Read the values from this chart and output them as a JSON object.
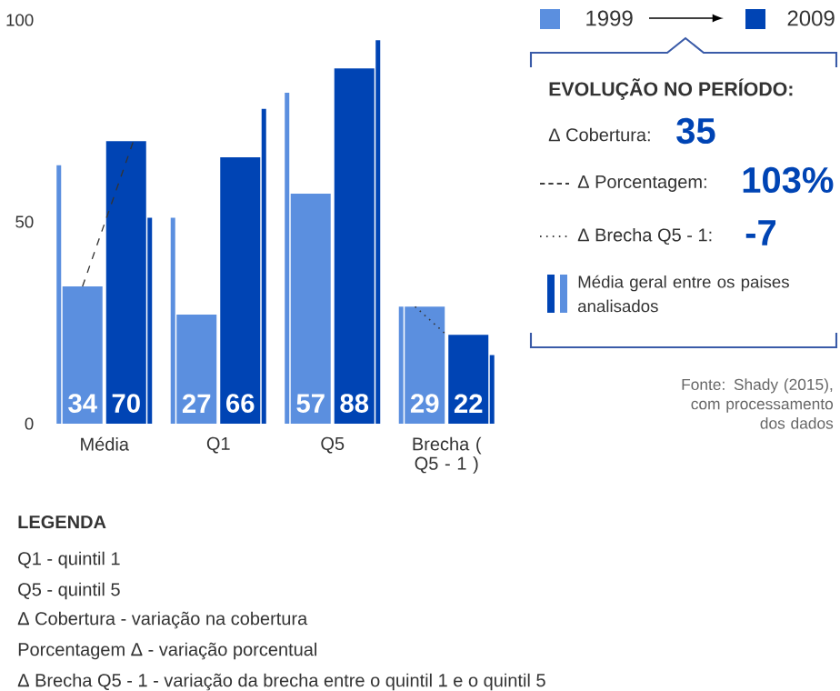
{
  "chart_data": {
    "type": "bar",
    "categories": [
      "Média",
      "Q1",
      "Q5",
      "Brecha ( Q5 - 1 )"
    ],
    "series": [
      {
        "name": "Média geral entre os paises analisados",
        "color": "#5b8fdf",
        "values": [
          64,
          51,
          82,
          29
        ]
      },
      {
        "name": "1999",
        "color": "#5b8fdf",
        "values": [
          34,
          27,
          57,
          29
        ],
        "value_labels": [
          "34",
          "27",
          "57",
          "29"
        ]
      },
      {
        "name": "2009",
        "color": "#0044b4",
        "values": [
          70,
          66,
          88,
          22
        ],
        "value_labels": [
          "70",
          "66",
          "88",
          "22"
        ]
      },
      {
        "color": "#0044b4",
        "values": [
          51,
          78,
          95,
          17
        ]
      }
    ],
    "ylim": [
      0,
      100
    ],
    "yticks": [
      0,
      50,
      100
    ],
    "legend": "top right",
    "annotations": [
      "EVOLUÇÃO NO PERÍODO:",
      "Δ Cobertura:",
      "35",
      "Δ Porcentagem:",
      "103%",
      "Δ Brecha Q5 - 1:",
      "-7",
      "Fonte: Shady (2015), com processamento dos dados",
      "LEGENDA",
      "Q1 - quintil 1",
      "Q5 - quintil 5",
      "Δ Cobertura - variação na cobertura",
      "Porcentagem Δ - variação porcentual",
      "Δ Brecha Q5 - 1 - variação da brecha entre o quintil 1 e o quintil 5"
    ]
  }
}
